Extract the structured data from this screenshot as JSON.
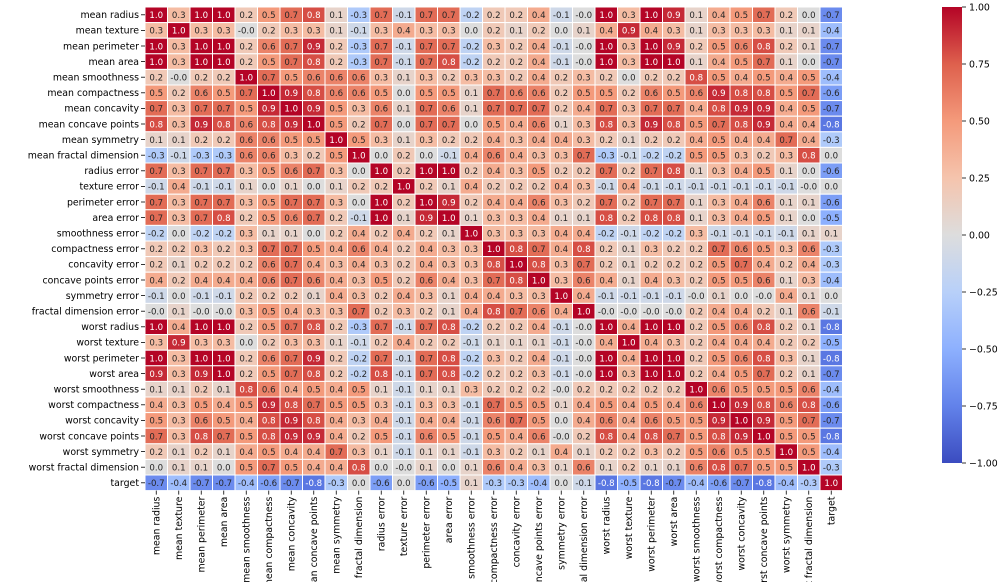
{
  "chart_data": {
    "type": "heatmap",
    "title": "",
    "labels": [
      "mean radius",
      "mean texture",
      "mean perimeter",
      "mean area",
      "mean smoothness",
      "mean compactness",
      "mean concavity",
      "mean concave points",
      "mean symmetry",
      "mean fractal dimension",
      "radius error",
      "texture error",
      "perimeter error",
      "area error",
      "smoothness error",
      "compactness error",
      "concavity error",
      "concave points error",
      "symmetry error",
      "fractal dimension error",
      "worst radius",
      "worst texture",
      "worst perimeter",
      "worst area",
      "worst smoothness",
      "worst compactness",
      "worst concavity",
      "worst concave points",
      "worst symmetry",
      "worst fractal dimension",
      "target"
    ],
    "matrix": [
      [
        1.0,
        0.3,
        1.0,
        1.0,
        0.2,
        0.5,
        0.7,
        0.8,
        0.1,
        -0.3,
        0.7,
        -0.1,
        0.7,
        0.7,
        -0.2,
        0.2,
        0.2,
        0.4,
        -0.1,
        -0.0,
        1.0,
        0.3,
        1.0,
        0.9,
        0.1,
        0.4,
        0.5,
        0.7,
        0.2,
        0.0,
        -0.7
      ],
      [
        0.3,
        1.0,
        0.3,
        0.3,
        -0.0,
        0.2,
        0.3,
        0.3,
        0.1,
        -0.1,
        0.3,
        0.4,
        0.3,
        0.3,
        0.0,
        0.2,
        0.1,
        0.2,
        0.0,
        0.1,
        0.4,
        0.9,
        0.4,
        0.3,
        0.1,
        0.3,
        0.3,
        0.3,
        0.1,
        0.1,
        -0.4
      ],
      [
        1.0,
        0.3,
        1.0,
        1.0,
        0.2,
        0.6,
        0.7,
        0.9,
        0.2,
        -0.3,
        0.7,
        -0.1,
        0.7,
        0.7,
        -0.2,
        0.3,
        0.2,
        0.4,
        -0.1,
        -0.0,
        1.0,
        0.3,
        1.0,
        0.9,
        0.2,
        0.5,
        0.6,
        0.8,
        0.2,
        0.1,
        -0.7
      ],
      [
        1.0,
        0.3,
        1.0,
        1.0,
        0.2,
        0.5,
        0.7,
        0.8,
        0.2,
        -0.3,
        0.7,
        -0.1,
        0.7,
        0.8,
        -0.2,
        0.2,
        0.2,
        0.4,
        -0.1,
        -0.0,
        1.0,
        0.3,
        1.0,
        1.0,
        0.1,
        0.4,
        0.5,
        0.7,
        0.1,
        0.0,
        -0.7
      ],
      [
        0.2,
        -0.0,
        0.2,
        0.2,
        1.0,
        0.7,
        0.5,
        0.6,
        0.6,
        0.6,
        0.3,
        0.1,
        0.3,
        0.2,
        0.3,
        0.3,
        0.2,
        0.4,
        0.2,
        0.3,
        0.2,
        0.0,
        0.2,
        0.2,
        0.8,
        0.5,
        0.4,
        0.5,
        0.4,
        0.5,
        -0.4
      ],
      [
        0.5,
        0.2,
        0.6,
        0.5,
        0.7,
        1.0,
        0.9,
        0.8,
        0.6,
        0.6,
        0.5,
        0.0,
        0.5,
        0.5,
        0.1,
        0.7,
        0.6,
        0.6,
        0.2,
        0.5,
        0.5,
        0.2,
        0.6,
        0.5,
        0.6,
        0.9,
        0.8,
        0.8,
        0.5,
        0.7,
        -0.6
      ],
      [
        0.7,
        0.3,
        0.7,
        0.7,
        0.5,
        0.9,
        1.0,
        0.9,
        0.5,
        0.3,
        0.6,
        0.1,
        0.7,
        0.6,
        0.1,
        0.7,
        0.7,
        0.7,
        0.2,
        0.4,
        0.7,
        0.3,
        0.7,
        0.7,
        0.4,
        0.8,
        0.9,
        0.9,
        0.4,
        0.5,
        -0.7
      ],
      [
        0.8,
        0.3,
        0.9,
        0.8,
        0.6,
        0.8,
        0.9,
        1.0,
        0.5,
        0.2,
        0.7,
        0.0,
        0.7,
        0.7,
        0.0,
        0.5,
        0.4,
        0.6,
        0.1,
        0.3,
        0.8,
        0.3,
        0.9,
        0.8,
        0.5,
        0.7,
        0.8,
        0.9,
        0.4,
        0.4,
        -0.8
      ],
      [
        0.1,
        0.1,
        0.2,
        0.2,
        0.6,
        0.6,
        0.5,
        0.5,
        1.0,
        0.5,
        0.3,
        0.1,
        0.3,
        0.2,
        0.2,
        0.4,
        0.3,
        0.4,
        0.4,
        0.3,
        0.2,
        0.1,
        0.2,
        0.2,
        0.4,
        0.5,
        0.4,
        0.4,
        0.7,
        0.4,
        -0.3
      ],
      [
        -0.3,
        -0.1,
        -0.3,
        -0.3,
        0.6,
        0.6,
        0.3,
        0.2,
        0.5,
        1.0,
        0.0,
        0.2,
        0.0,
        -0.1,
        0.4,
        0.6,
        0.4,
        0.3,
        0.3,
        0.7,
        -0.3,
        -0.1,
        -0.2,
        -0.2,
        0.5,
        0.5,
        0.3,
        0.2,
        0.3,
        0.8,
        0.0
      ],
      [
        0.7,
        0.3,
        0.7,
        0.7,
        0.3,
        0.5,
        0.6,
        0.7,
        0.3,
        0.0,
        1.0,
        0.2,
        1.0,
        1.0,
        0.2,
        0.4,
        0.3,
        0.5,
        0.2,
        0.2,
        0.7,
        0.2,
        0.7,
        0.8,
        0.1,
        0.3,
        0.4,
        0.5,
        0.1,
        0.0,
        -0.6
      ],
      [
        -0.1,
        0.4,
        -0.1,
        -0.1,
        0.1,
        0.0,
        0.1,
        0.0,
        0.1,
        0.2,
        0.2,
        1.0,
        0.2,
        0.1,
        0.4,
        0.2,
        0.2,
        0.2,
        0.4,
        0.3,
        -0.1,
        0.4,
        -0.1,
        -0.1,
        -0.1,
        -0.1,
        -0.1,
        -0.1,
        -0.1,
        -0.0,
        0.0
      ],
      [
        0.7,
        0.3,
        0.7,
        0.7,
        0.3,
        0.5,
        0.7,
        0.7,
        0.3,
        0.0,
        1.0,
        0.2,
        1.0,
        0.9,
        0.2,
        0.4,
        0.4,
        0.6,
        0.3,
        0.2,
        0.7,
        0.2,
        0.7,
        0.7,
        0.1,
        0.3,
        0.4,
        0.6,
        0.1,
        0.1,
        -0.6
      ],
      [
        0.7,
        0.3,
        0.7,
        0.8,
        0.2,
        0.5,
        0.6,
        0.7,
        0.2,
        -0.1,
        1.0,
        0.1,
        0.9,
        1.0,
        0.1,
        0.3,
        0.3,
        0.4,
        0.1,
        0.1,
        0.8,
        0.2,
        0.8,
        0.8,
        0.1,
        0.3,
        0.4,
        0.5,
        0.1,
        0.0,
        -0.5
      ],
      [
        -0.2,
        0.0,
        -0.2,
        -0.2,
        0.3,
        0.1,
        0.1,
        0.0,
        0.2,
        0.4,
        0.2,
        0.4,
        0.2,
        0.1,
        1.0,
        0.3,
        0.3,
        0.3,
        0.4,
        0.4,
        -0.2,
        -0.1,
        -0.2,
        -0.2,
        0.3,
        -0.1,
        -0.1,
        -0.1,
        -0.1,
        0.1,
        0.1
      ],
      [
        0.2,
        0.2,
        0.3,
        0.2,
        0.3,
        0.7,
        0.7,
        0.5,
        0.4,
        0.6,
        0.4,
        0.2,
        0.4,
        0.3,
        0.3,
        1.0,
        0.8,
        0.7,
        0.4,
        0.8,
        0.2,
        0.1,
        0.3,
        0.2,
        0.2,
        0.7,
        0.6,
        0.5,
        0.3,
        0.6,
        -0.3
      ],
      [
        0.2,
        0.1,
        0.2,
        0.2,
        0.2,
        0.6,
        0.7,
        0.4,
        0.3,
        0.4,
        0.3,
        0.2,
        0.4,
        0.3,
        0.3,
        0.8,
        1.0,
        0.8,
        0.3,
        0.7,
        0.2,
        0.1,
        0.2,
        0.2,
        0.2,
        0.5,
        0.7,
        0.4,
        0.2,
        0.4,
        -0.3
      ],
      [
        0.4,
        0.2,
        0.4,
        0.4,
        0.4,
        0.6,
        0.7,
        0.6,
        0.4,
        0.3,
        0.5,
        0.2,
        0.6,
        0.4,
        0.3,
        0.7,
        0.8,
        1.0,
        0.3,
        0.6,
        0.4,
        0.1,
        0.4,
        0.3,
        0.2,
        0.5,
        0.5,
        0.6,
        0.1,
        0.3,
        -0.4
      ],
      [
        -0.1,
        0.0,
        -0.1,
        -0.1,
        0.2,
        0.2,
        0.2,
        0.1,
        0.4,
        0.3,
        0.2,
        0.4,
        0.3,
        0.1,
        0.4,
        0.4,
        0.3,
        0.3,
        1.0,
        0.4,
        -0.1,
        -0.1,
        -0.1,
        -0.1,
        -0.0,
        0.1,
        0.0,
        -0.0,
        0.4,
        0.1,
        0.0
      ],
      [
        -0.0,
        0.1,
        -0.0,
        -0.0,
        0.3,
        0.5,
        0.4,
        0.3,
        0.3,
        0.7,
        0.2,
        0.3,
        0.2,
        0.1,
        0.4,
        0.8,
        0.7,
        0.6,
        0.4,
        1.0,
        -0.0,
        -0.0,
        -0.0,
        -0.0,
        0.2,
        0.4,
        0.4,
        0.2,
        0.1,
        0.6,
        -0.1
      ],
      [
        1.0,
        0.4,
        1.0,
        1.0,
        0.2,
        0.5,
        0.7,
        0.8,
        0.2,
        -0.3,
        0.7,
        -0.1,
        0.7,
        0.8,
        -0.2,
        0.2,
        0.2,
        0.4,
        -0.1,
        -0.0,
        1.0,
        0.4,
        1.0,
        1.0,
        0.2,
        0.5,
        0.6,
        0.8,
        0.2,
        0.1,
        -0.8
      ],
      [
        0.3,
        0.9,
        0.3,
        0.3,
        0.0,
        0.2,
        0.3,
        0.3,
        0.1,
        -0.1,
        0.2,
        0.4,
        0.2,
        0.2,
        -0.1,
        0.1,
        0.1,
        0.1,
        -0.1,
        -0.0,
        0.4,
        1.0,
        0.4,
        0.3,
        0.2,
        0.4,
        0.4,
        0.4,
        0.2,
        0.2,
        -0.5
      ],
      [
        1.0,
        0.3,
        1.0,
        1.0,
        0.2,
        0.6,
        0.7,
        0.9,
        0.2,
        -0.2,
        0.7,
        -0.1,
        0.7,
        0.8,
        -0.2,
        0.3,
        0.2,
        0.4,
        -0.1,
        -0.0,
        1.0,
        0.4,
        1.0,
        1.0,
        0.2,
        0.5,
        0.6,
        0.8,
        0.3,
        0.1,
        -0.8
      ],
      [
        0.9,
        0.3,
        0.9,
        1.0,
        0.2,
        0.5,
        0.7,
        0.8,
        0.2,
        -0.2,
        0.8,
        -0.1,
        0.7,
        0.8,
        -0.2,
        0.2,
        0.2,
        0.3,
        -0.1,
        -0.0,
        1.0,
        0.3,
        1.0,
        1.0,
        0.2,
        0.4,
        0.5,
        0.7,
        0.2,
        0.1,
        -0.7
      ],
      [
        0.1,
        0.1,
        0.2,
        0.1,
        0.8,
        0.6,
        0.4,
        0.5,
        0.4,
        0.5,
        0.1,
        -0.1,
        0.1,
        0.1,
        0.3,
        0.2,
        0.2,
        0.2,
        -0.0,
        0.2,
        0.2,
        0.2,
        0.2,
        0.2,
        1.0,
        0.6,
        0.5,
        0.5,
        0.5,
        0.6,
        -0.4
      ],
      [
        0.4,
        0.3,
        0.5,
        0.4,
        0.5,
        0.9,
        0.8,
        0.7,
        0.5,
        0.5,
        0.3,
        -0.1,
        0.3,
        0.3,
        -0.1,
        0.7,
        0.5,
        0.5,
        0.1,
        0.4,
        0.5,
        0.4,
        0.5,
        0.4,
        0.6,
        1.0,
        0.9,
        0.8,
        0.6,
        0.8,
        -0.6
      ],
      [
        0.5,
        0.3,
        0.6,
        0.5,
        0.4,
        0.8,
        0.9,
        0.8,
        0.4,
        0.3,
        0.4,
        -0.1,
        0.4,
        0.4,
        -0.1,
        0.6,
        0.7,
        0.5,
        0.0,
        0.4,
        0.6,
        0.4,
        0.6,
        0.5,
        0.5,
        0.9,
        1.0,
        0.9,
        0.5,
        0.7,
        -0.7
      ],
      [
        0.7,
        0.3,
        0.8,
        0.7,
        0.5,
        0.8,
        0.9,
        0.9,
        0.4,
        0.2,
        0.5,
        -0.1,
        0.6,
        0.5,
        -0.1,
        0.5,
        0.4,
        0.6,
        -0.0,
        0.2,
        0.8,
        0.4,
        0.8,
        0.7,
        0.5,
        0.8,
        0.9,
        1.0,
        0.5,
        0.5,
        -0.8
      ],
      [
        0.2,
        0.1,
        0.2,
        0.1,
        0.4,
        0.5,
        0.4,
        0.4,
        0.7,
        0.3,
        0.1,
        -0.1,
        0.1,
        0.1,
        -0.1,
        0.3,
        0.2,
        0.1,
        0.4,
        0.1,
        0.2,
        0.2,
        0.3,
        0.2,
        0.5,
        0.6,
        0.5,
        0.5,
        1.0,
        0.5,
        -0.4
      ],
      [
        0.0,
        0.1,
        0.1,
        0.0,
        0.5,
        0.7,
        0.5,
        0.4,
        0.4,
        0.8,
        0.0,
        -0.0,
        0.1,
        0.0,
        0.1,
        0.6,
        0.4,
        0.3,
        0.1,
        0.6,
        0.1,
        0.2,
        0.1,
        0.1,
        0.6,
        0.8,
        0.7,
        0.5,
        0.5,
        1.0,
        -0.3
      ],
      [
        -0.7,
        -0.4,
        -0.7,
        -0.7,
        -0.4,
        -0.6,
        -0.7,
        -0.8,
        -0.3,
        0.0,
        -0.6,
        0.0,
        -0.6,
        -0.5,
        0.1,
        -0.3,
        -0.3,
        -0.4,
        0.0,
        -0.1,
        -0.8,
        -0.5,
        -0.8,
        -0.7,
        -0.4,
        -0.6,
        -0.7,
        -0.8,
        -0.4,
        -0.3,
        1.0
      ]
    ],
    "value_range": [
      -1.0,
      1.0
    ],
    "colormap": "coolwarm",
    "colorbar_ticks": [
      "1.00",
      "0.75",
      "0.50",
      "0.25",
      "0.00",
      "−0.25",
      "−0.50",
      "−0.75",
      "−1.00"
    ],
    "colorbar_tick_values": [
      1.0,
      0.75,
      0.5,
      0.25,
      0.0,
      -0.25,
      -0.5,
      -0.75,
      -1.0
    ],
    "annotation_format": "0.1f",
    "colors": {
      "low": "#3b4cc0",
      "mid": "#dddddd",
      "high": "#b40426",
      "cell_border": "#ffffff",
      "label": "#000000"
    }
  }
}
